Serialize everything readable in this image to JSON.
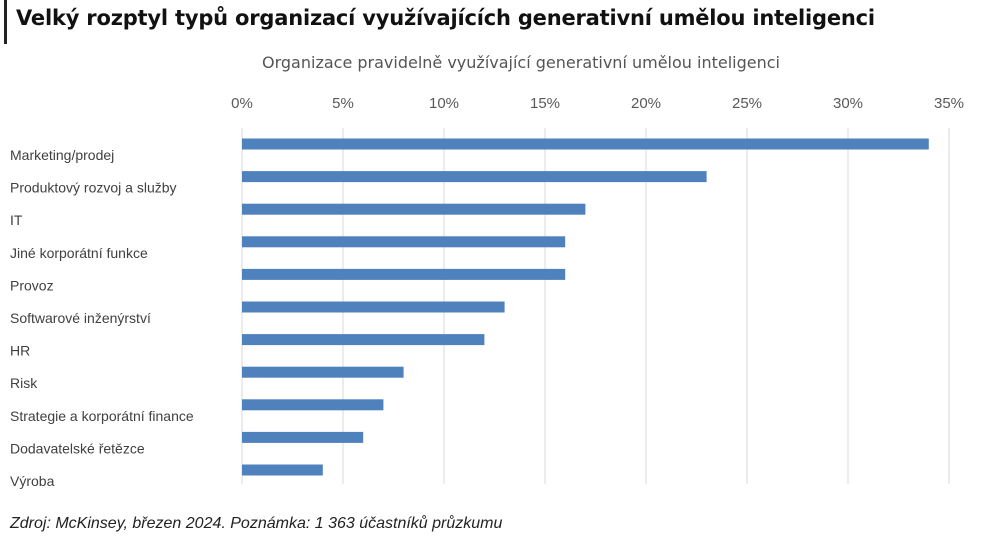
{
  "title": "Velký rozptyl typů organizací využívajících generativní umělou inteligenci",
  "source_note": "Zdroj: McKinsey, březen 2024. Poznámka: 1 363 účastníků průzkumu",
  "colors": {
    "bar": "#4f81bd",
    "grid": "#d9d9d9",
    "axis_text": "#595959",
    "category_text": "#404040"
  },
  "chart_data": {
    "type": "bar",
    "orientation": "horizontal",
    "title": "Organizace pravidelně využívající generativní umělou inteligenci",
    "xlabel": "",
    "ylabel": "",
    "x_axis_position": "top",
    "xlim": [
      0,
      0.35
    ],
    "x_ticks": [
      0,
      0.05,
      0.1,
      0.15,
      0.2,
      0.25,
      0.3,
      0.35
    ],
    "x_tick_labels": [
      "0%",
      "5%",
      "10%",
      "15%",
      "20%",
      "25%",
      "30%",
      "35%"
    ],
    "grid": "vertical",
    "legend": "none",
    "categories": [
      "Marketing/prodej",
      "Produktový rozvoj a služby",
      "IT",
      "Jiné korporátní funkce",
      "Provoz",
      "Softwarové inženýrství",
      "HR",
      "Risk",
      "Strategie a korporátní finance",
      "Dodavatelské řetězce",
      "Výroba"
    ],
    "values": [
      0.34,
      0.23,
      0.17,
      0.16,
      0.16,
      0.13,
      0.12,
      0.08,
      0.07,
      0.06,
      0.04
    ]
  }
}
